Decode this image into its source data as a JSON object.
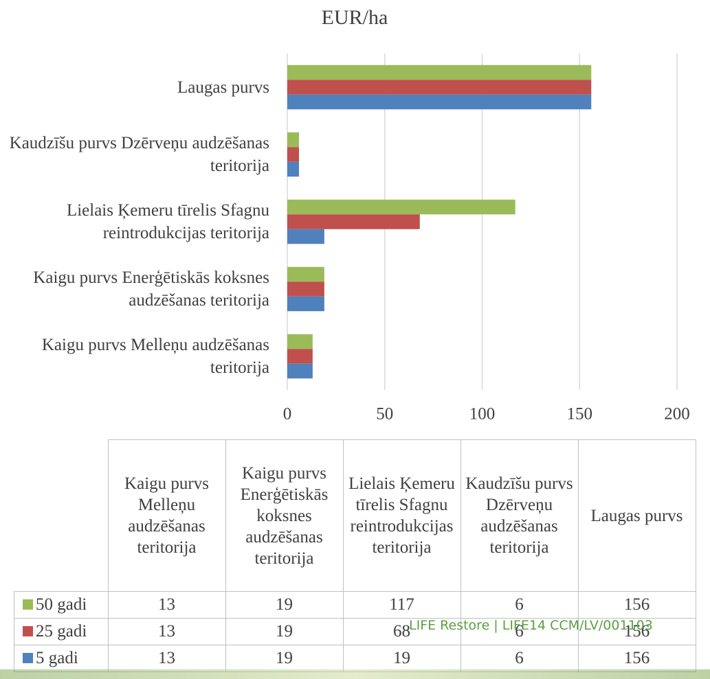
{
  "chart_data": {
    "type": "bar",
    "orientation": "horizontal",
    "title": "EUR/ha",
    "categories": [
      "Kaigu purvs Melleņu audzēšanas teritorija",
      "Kaigu purvs Enerģētiskās koksnes audzēšanas teritorija",
      "Lielais Ķemeru tīrelis Sfagnu reintrodukcijas teritorija",
      "Kaudzīšu purvs Dzērveņu audzēšanas teritorija",
      "Laugas purvs"
    ],
    "series": [
      {
        "name": "50 gadi",
        "color": "#9bbb59",
        "values": [
          13,
          19,
          117,
          6,
          156
        ]
      },
      {
        "name": "25 gadi",
        "color": "#c0504d",
        "values": [
          13,
          19,
          68,
          6,
          156
        ]
      },
      {
        "name": "5 gadi",
        "color": "#4f81bd",
        "values": [
          13,
          19,
          19,
          6,
          156
        ]
      }
    ],
    "xlim": [
      0,
      200
    ],
    "xticks": [
      0,
      50,
      100,
      150,
      200
    ],
    "grid": true,
    "data_table": true
  },
  "footer": "LIFE Restore | LIFE14 CCM/LV/001103"
}
